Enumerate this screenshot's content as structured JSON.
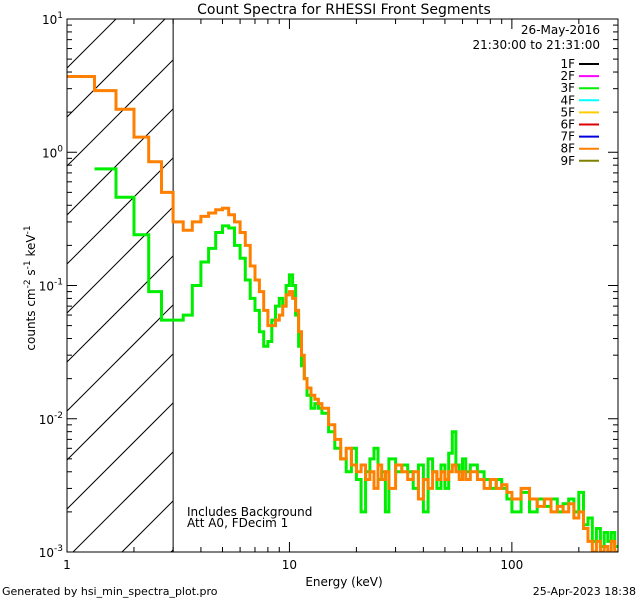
{
  "chart_data": {
    "type": "line",
    "title": "Count Spectra for RHESSI Front Segments",
    "xlabel": "Energy (keV)",
    "ylabel": "counts cm-2 s-1 keV-1",
    "xscale": "log",
    "yscale": "log",
    "xlim": [
      1,
      300
    ],
    "ylim": [
      0.001,
      10
    ],
    "x_ticks": [
      {
        "value": 1,
        "label": "1"
      },
      {
        "value": 10,
        "label": "10"
      },
      {
        "value": 100,
        "label": "100"
      }
    ],
    "y_ticks": [
      {
        "value": 10,
        "base": "10",
        "exp": "1"
      },
      {
        "value": 1,
        "base": "10",
        "exp": "0"
      },
      {
        "value": 0.1,
        "base": "10",
        "exp": "-1"
      },
      {
        "value": 0.01,
        "base": "10",
        "exp": "-2"
      },
      {
        "value": 0.001,
        "base": "10",
        "exp": "-3"
      }
    ],
    "header_lines": [
      "26-May-2016",
      "21:30:00 to 21:31:00"
    ],
    "shaded_region": {
      "x_from": 1,
      "x_to": 3,
      "note": "hatched region below 3 keV"
    },
    "annotations": [
      "Includes Background",
      "Att A0, FDecim 1"
    ],
    "legend": [
      {
        "name": "1F",
        "color": "#000000"
      },
      {
        "name": "2F",
        "color": "#ff00ff"
      },
      {
        "name": "3F",
        "color": "#00ee00"
      },
      {
        "name": "4F",
        "color": "#00ffff"
      },
      {
        "name": "5F",
        "color": "#ffcc00"
      },
      {
        "name": "6F",
        "color": "#dd0000"
      },
      {
        "name": "7F",
        "color": "#0000dd"
      },
      {
        "name": "8F",
        "color": "#ff8000"
      },
      {
        "name": "9F",
        "color": "#808000"
      }
    ],
    "series": [
      {
        "name": "3F",
        "color": "#00ee00",
        "points": [
          [
            1.33,
            0.75
          ],
          [
            1.66,
            0.46
          ],
          [
            2.0,
            0.24
          ],
          [
            2.33,
            0.09
          ],
          [
            2.66,
            0.055
          ],
          [
            3.0,
            0.055
          ],
          [
            3.33,
            0.06
          ],
          [
            3.66,
            0.1
          ],
          [
            4.0,
            0.15
          ],
          [
            4.33,
            0.19
          ],
          [
            4.66,
            0.25
          ],
          [
            5.0,
            0.28
          ],
          [
            5.33,
            0.27
          ],
          [
            5.66,
            0.2
          ],
          [
            6.0,
            0.16
          ],
          [
            6.33,
            0.11
          ],
          [
            6.66,
            0.08
          ],
          [
            7.0,
            0.065
          ],
          [
            7.33,
            0.045
          ],
          [
            7.66,
            0.035
          ],
          [
            8.0,
            0.038
          ],
          [
            8.33,
            0.055
          ],
          [
            8.66,
            0.07
          ],
          [
            9.0,
            0.08
          ],
          [
            9.33,
            0.07
          ],
          [
            9.66,
            0.1
          ],
          [
            10.0,
            0.12
          ],
          [
            10.33,
            0.1
          ],
          [
            10.66,
            0.06
          ],
          [
            11.0,
            0.035
          ],
          [
            11.33,
            0.025
          ],
          [
            11.66,
            0.02
          ],
          [
            12.0,
            0.015
          ],
          [
            12.5,
            0.012
          ],
          [
            13.0,
            0.013
          ],
          [
            13.5,
            0.012
          ],
          [
            14.0,
            0.011
          ],
          [
            15.0,
            0.008
          ],
          [
            16.0,
            0.006
          ],
          [
            17.0,
            0.005
          ],
          [
            18.0,
            0.004
          ],
          [
            19.0,
            0.006
          ],
          [
            20.0,
            0.0035
          ],
          [
            21.0,
            0.002
          ],
          [
            22.0,
            0.004
          ],
          [
            23.0,
            0.005
          ],
          [
            24.0,
            0.006
          ],
          [
            25.0,
            0.0035
          ],
          [
            26.0,
            0.004
          ],
          [
            27.0,
            0.002
          ],
          [
            28.0,
            0.005
          ],
          [
            30.0,
            0.004
          ],
          [
            32.0,
            0.0045
          ],
          [
            34.0,
            0.004
          ],
          [
            36.0,
            0.003
          ],
          [
            38.0,
            0.0045
          ],
          [
            40.0,
            0.002
          ],
          [
            42.0,
            0.005
          ],
          [
            44.0,
            0.004
          ],
          [
            46.0,
            0.003
          ],
          [
            48.0,
            0.0045
          ],
          [
            50.0,
            0.003
          ],
          [
            52.0,
            0.0055
          ],
          [
            54.0,
            0.008
          ],
          [
            56.0,
            0.0045
          ],
          [
            58.0,
            0.004
          ],
          [
            60.0,
            0.005
          ],
          [
            62.0,
            0.004
          ],
          [
            65.0,
            0.0045
          ],
          [
            70.0,
            0.004
          ],
          [
            75.0,
            0.0035
          ],
          [
            80.0,
            0.003
          ],
          [
            85.0,
            0.0035
          ],
          [
            90.0,
            0.003
          ],
          [
            95.0,
            0.0025
          ],
          [
            100.0,
            0.002
          ],
          [
            110.0,
            0.0028
          ],
          [
            120.0,
            0.002
          ],
          [
            130.0,
            0.0025
          ],
          [
            140.0,
            0.0022
          ],
          [
            150.0,
            0.0025
          ],
          [
            160.0,
            0.002
          ],
          [
            170.0,
            0.0023
          ],
          [
            180.0,
            0.0025
          ],
          [
            190.0,
            0.002
          ],
          [
            200.0,
            0.0028
          ],
          [
            210.0,
            0.0016
          ],
          [
            220.0,
            0.0018
          ],
          [
            230.0,
            0.0012
          ],
          [
            240.0,
            0.0015
          ],
          [
            250.0,
            0.0011
          ],
          [
            260.0,
            0.0014
          ],
          [
            270.0,
            0.0012
          ],
          [
            280.0,
            0.0014
          ],
          [
            290.0,
            0.0011
          ],
          [
            300.0,
            0.0011
          ]
        ]
      },
      {
        "name": "8F",
        "color": "#ff8000",
        "points": [
          [
            1.0,
            3.7
          ],
          [
            1.33,
            2.9
          ],
          [
            1.66,
            2.1
          ],
          [
            2.0,
            1.3
          ],
          [
            2.33,
            0.85
          ],
          [
            2.66,
            0.5
          ],
          [
            3.0,
            0.3
          ],
          [
            3.33,
            0.26
          ],
          [
            3.66,
            0.3
          ],
          [
            4.0,
            0.33
          ],
          [
            4.33,
            0.35
          ],
          [
            4.66,
            0.37
          ],
          [
            5.0,
            0.38
          ],
          [
            5.33,
            0.34
          ],
          [
            5.66,
            0.3
          ],
          [
            6.0,
            0.25
          ],
          [
            6.33,
            0.2
          ],
          [
            6.66,
            0.14
          ],
          [
            7.0,
            0.11
          ],
          [
            7.33,
            0.09
          ],
          [
            7.66,
            0.065
          ],
          [
            8.0,
            0.05
          ],
          [
            8.33,
            0.05
          ],
          [
            8.66,
            0.055
          ],
          [
            9.0,
            0.06
          ],
          [
            9.33,
            0.07
          ],
          [
            9.66,
            0.085
          ],
          [
            10.0,
            0.09
          ],
          [
            10.33,
            0.08
          ],
          [
            10.66,
            0.065
          ],
          [
            11.0,
            0.045
          ],
          [
            11.33,
            0.03
          ],
          [
            11.66,
            0.02
          ],
          [
            12.0,
            0.017
          ],
          [
            12.5,
            0.015
          ],
          [
            13.0,
            0.014
          ],
          [
            13.5,
            0.013
          ],
          [
            14.0,
            0.012
          ],
          [
            15.0,
            0.009
          ],
          [
            16.0,
            0.007
          ],
          [
            17.0,
            0.005
          ],
          [
            18.0,
            0.006
          ],
          [
            19.0,
            0.0045
          ],
          [
            20.0,
            0.004
          ],
          [
            21.0,
            0.0045
          ],
          [
            22.0,
            0.0035
          ],
          [
            23.0,
            0.004
          ],
          [
            24.0,
            0.003
          ],
          [
            25.0,
            0.0045
          ],
          [
            26.0,
            0.0035
          ],
          [
            27.0,
            0.004
          ],
          [
            28.0,
            0.003
          ],
          [
            30.0,
            0.0045
          ],
          [
            32.0,
            0.004
          ],
          [
            34.0,
            0.0035
          ],
          [
            36.0,
            0.004
          ],
          [
            38.0,
            0.0025
          ],
          [
            40.0,
            0.0035
          ],
          [
            42.0,
            0.003
          ],
          [
            44.0,
            0.004
          ],
          [
            46.0,
            0.0035
          ],
          [
            48.0,
            0.004
          ],
          [
            50.0,
            0.0035
          ],
          [
            52.0,
            0.004
          ],
          [
            54.0,
            0.0045
          ],
          [
            56.0,
            0.004
          ],
          [
            58.0,
            0.0035
          ],
          [
            60.0,
            0.004
          ],
          [
            62.0,
            0.0035
          ],
          [
            65.0,
            0.004
          ],
          [
            70.0,
            0.0035
          ],
          [
            75.0,
            0.003
          ],
          [
            80.0,
            0.0035
          ],
          [
            85.0,
            0.003
          ],
          [
            90.0,
            0.0032
          ],
          [
            95.0,
            0.0028
          ],
          [
            100.0,
            0.0025
          ],
          [
            110.0,
            0.003
          ],
          [
            120.0,
            0.0025
          ],
          [
            130.0,
            0.0022
          ],
          [
            140.0,
            0.0025
          ],
          [
            150.0,
            0.002
          ],
          [
            160.0,
            0.0022
          ],
          [
            170.0,
            0.002
          ],
          [
            180.0,
            0.0023
          ],
          [
            190.0,
            0.0018
          ],
          [
            200.0,
            0.002
          ],
          [
            210.0,
            0.0015
          ],
          [
            220.0,
            0.0012
          ],
          [
            230.0,
            0.001
          ],
          [
            240.0,
            0.0012
          ],
          [
            250.0,
            0.001
          ],
          [
            260.0,
            0.0011
          ],
          [
            270.0,
            0.001
          ],
          [
            280.0,
            0.0012
          ],
          [
            290.0,
            0.001
          ],
          [
            300.0,
            0.001
          ]
        ]
      }
    ]
  },
  "footer": {
    "left": "Generated by hsi_min_spectra_plot.pro",
    "right": "25-Apr-2023 18:38"
  }
}
